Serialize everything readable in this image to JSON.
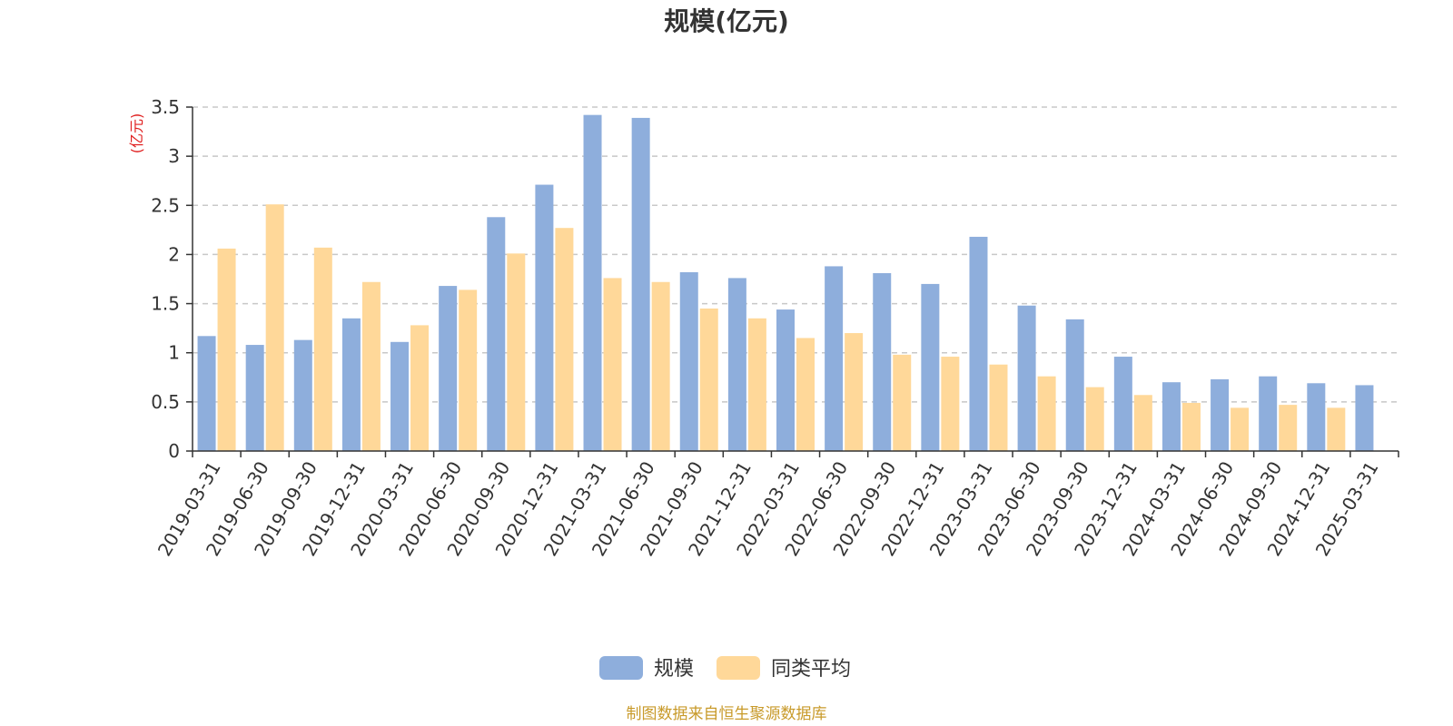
{
  "colors": {
    "series1": "#8eaedc",
    "series2": "#ffd899",
    "unit": "#e02020",
    "source": "#c89a2a",
    "grid": "#c8c8c8",
    "axis": "#333333"
  },
  "chart_data": {
    "type": "bar",
    "title": "规模(亿元)",
    "ylabel": "(亿元)",
    "ylim": [
      0,
      3.5
    ],
    "yticks": [
      "0",
      "0.5",
      "1",
      "1.5",
      "2",
      "2.5",
      "3",
      "3.5"
    ],
    "grid": true,
    "legend_position": "bottom-center",
    "categories": [
      "2019-03-31",
      "2019-06-30",
      "2019-09-30",
      "2019-12-31",
      "2020-03-31",
      "2020-06-30",
      "2020-09-30",
      "2020-12-31",
      "2021-03-31",
      "2021-06-30",
      "2021-09-30",
      "2021-12-31",
      "2022-03-31",
      "2022-06-30",
      "2022-09-30",
      "2022-12-31",
      "2023-03-31",
      "2023-06-30",
      "2023-09-30",
      "2023-12-31",
      "2024-03-31",
      "2024-06-30",
      "2024-09-30",
      "2024-12-31",
      "2025-03-31"
    ],
    "series": [
      {
        "name": "规模",
        "values": [
          1.17,
          1.08,
          1.13,
          1.35,
          1.11,
          1.68,
          2.38,
          2.71,
          3.42,
          3.39,
          1.82,
          1.76,
          1.44,
          1.88,
          1.81,
          1.7,
          2.18,
          1.48,
          1.34,
          0.96,
          0.7,
          0.73,
          0.76,
          0.69,
          0.67
        ]
      },
      {
        "name": "同类平均",
        "values": [
          2.06,
          2.51,
          2.07,
          1.72,
          1.28,
          1.64,
          2.01,
          2.27,
          1.76,
          1.72,
          1.45,
          1.35,
          1.15,
          1.2,
          0.98,
          0.96,
          0.88,
          0.76,
          0.65,
          0.57,
          0.49,
          0.44,
          0.47,
          0.44,
          null
        ]
      }
    ]
  },
  "source_text": "制图数据来自恒生聚源数据库"
}
